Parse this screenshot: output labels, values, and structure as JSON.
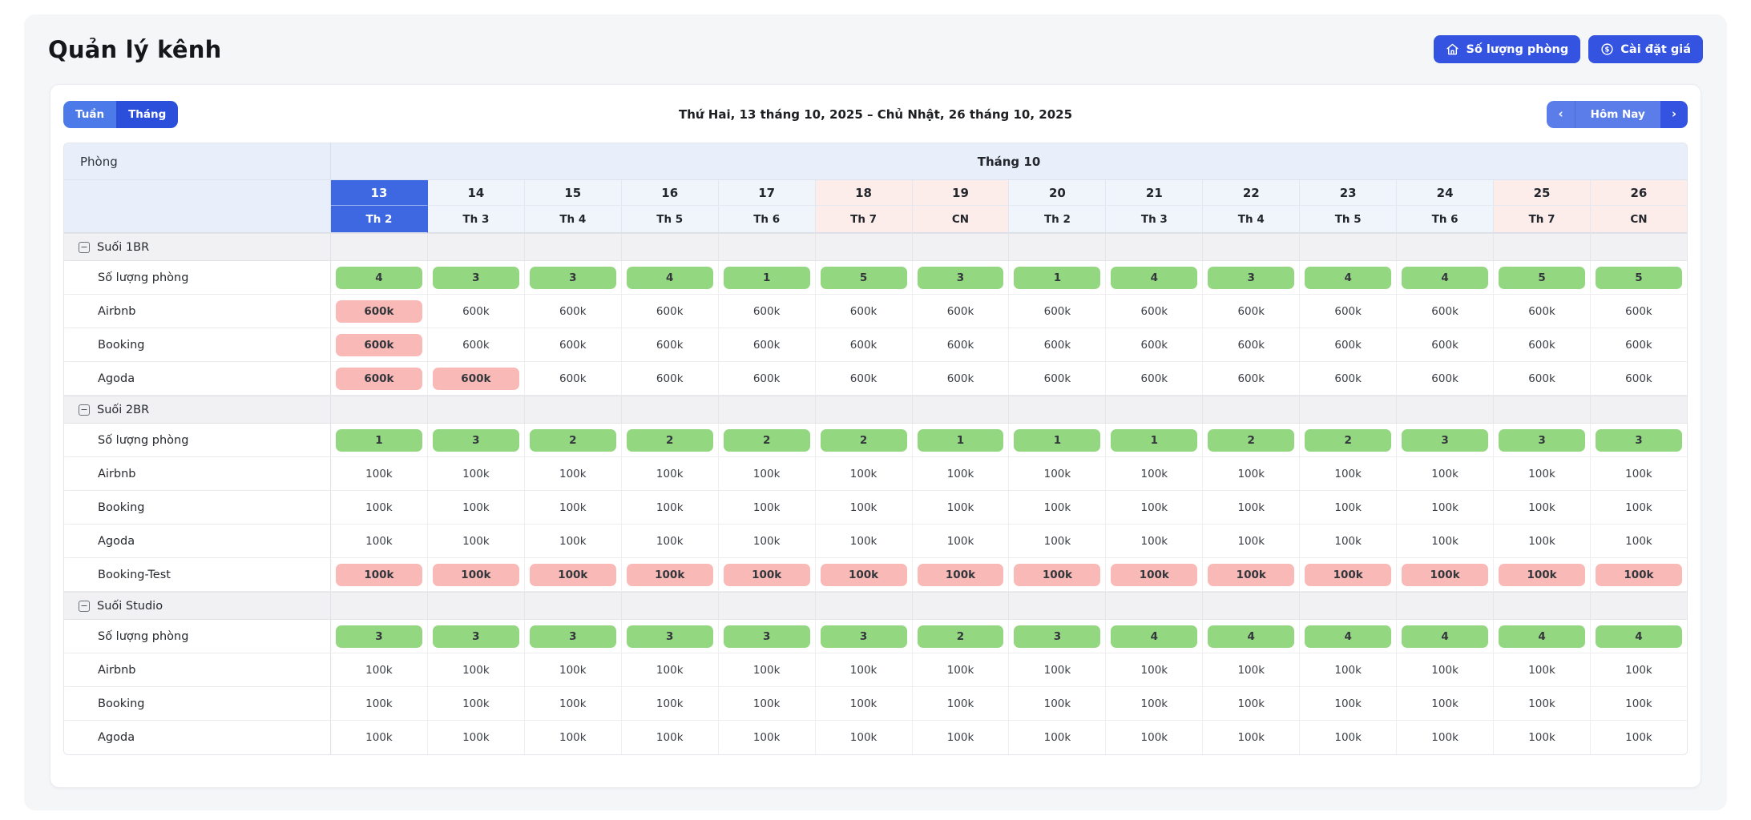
{
  "header": {
    "title": "Quản lý kênh",
    "buttons": [
      {
        "icon": "home-icon",
        "label": "Số lượng phòng"
      },
      {
        "icon": "dollar-circle-icon",
        "label": "Cài đặt giá"
      }
    ]
  },
  "toolbar": {
    "week_label": "Tuần",
    "month_label": "Tháng",
    "date_range": "Thứ Hai, 13 tháng 10, 2025 – Chủ Nhật, 26 tháng 10, 2025",
    "prev_icon": "‹",
    "today_label": "Hôm Nay",
    "next_icon": "›"
  },
  "colors": {
    "accent": "#3353e0",
    "accent_light": "#5b7de9",
    "today_blue": "#3d68e1",
    "header_blue": "#e9effa",
    "weekend_pink": "#fcedeb",
    "pill_green": "#93d780",
    "pill_pink": "#f9b9b6"
  },
  "table": {
    "corner_label": "Phòng",
    "month_label": "Tháng 10",
    "collapse_glyph": "−",
    "today_index": 0,
    "weekend_indices": [
      5,
      6,
      12,
      13
    ],
    "dates": [
      "13",
      "14",
      "15",
      "16",
      "17",
      "18",
      "19",
      "20",
      "21",
      "22",
      "23",
      "24",
      "25",
      "26"
    ],
    "dows": [
      "Th 2",
      "Th 3",
      "Th 4",
      "Th 5",
      "Th 6",
      "Th 7",
      "CN",
      "Th 2",
      "Th 3",
      "Th 4",
      "Th 5",
      "Th 6",
      "Th 7",
      "CN"
    ],
    "groups": [
      {
        "label": "Suối 1BR",
        "rows": [
          {
            "label": "Số lượng phòng",
            "type": "qty",
            "pink": [],
            "values": [
              "4",
              "3",
              "3",
              "4",
              "1",
              "5",
              "3",
              "1",
              "4",
              "3",
              "4",
              "4",
              "5",
              "5"
            ]
          },
          {
            "label": "Airbnb",
            "type": "price",
            "pink": [
              0
            ],
            "values": [
              "600k",
              "600k",
              "600k",
              "600k",
              "600k",
              "600k",
              "600k",
              "600k",
              "600k",
              "600k",
              "600k",
              "600k",
              "600k",
              "600k"
            ]
          },
          {
            "label": "Booking",
            "type": "price",
            "pink": [
              0
            ],
            "values": [
              "600k",
              "600k",
              "600k",
              "600k",
              "600k",
              "600k",
              "600k",
              "600k",
              "600k",
              "600k",
              "600k",
              "600k",
              "600k",
              "600k"
            ]
          },
          {
            "label": "Agoda",
            "type": "price",
            "pink": [
              0,
              1
            ],
            "values": [
              "600k",
              "600k",
              "600k",
              "600k",
              "600k",
              "600k",
              "600k",
              "600k",
              "600k",
              "600k",
              "600k",
              "600k",
              "600k",
              "600k"
            ]
          }
        ]
      },
      {
        "label": "Suối 2BR",
        "rows": [
          {
            "label": "Số lượng phòng",
            "type": "qty",
            "pink": [],
            "values": [
              "1",
              "3",
              "2",
              "2",
              "2",
              "2",
              "1",
              "1",
              "1",
              "2",
              "2",
              "3",
              "3",
              "3"
            ]
          },
          {
            "label": "Airbnb",
            "type": "price",
            "pink": [],
            "values": [
              "100k",
              "100k",
              "100k",
              "100k",
              "100k",
              "100k",
              "100k",
              "100k",
              "100k",
              "100k",
              "100k",
              "100k",
              "100k",
              "100k"
            ]
          },
          {
            "label": "Booking",
            "type": "price",
            "pink": [],
            "values": [
              "100k",
              "100k",
              "100k",
              "100k",
              "100k",
              "100k",
              "100k",
              "100k",
              "100k",
              "100k",
              "100k",
              "100k",
              "100k",
              "100k"
            ]
          },
          {
            "label": "Agoda",
            "type": "price",
            "pink": [],
            "values": [
              "100k",
              "100k",
              "100k",
              "100k",
              "100k",
              "100k",
              "100k",
              "100k",
              "100k",
              "100k",
              "100k",
              "100k",
              "100k",
              "100k"
            ]
          },
          {
            "label": "Booking-Test",
            "type": "price",
            "pink": [
              0,
              1,
              2,
              3,
              4,
              5,
              6,
              7,
              8,
              9,
              10,
              11,
              12,
              13
            ],
            "values": [
              "100k",
              "100k",
              "100k",
              "100k",
              "100k",
              "100k",
              "100k",
              "100k",
              "100k",
              "100k",
              "100k",
              "100k",
              "100k",
              "100k"
            ]
          }
        ]
      },
      {
        "label": "Suối Studio",
        "rows": [
          {
            "label": "Số lượng phòng",
            "type": "qty",
            "pink": [],
            "values": [
              "3",
              "3",
              "3",
              "3",
              "3",
              "3",
              "2",
              "3",
              "4",
              "4",
              "4",
              "4",
              "4",
              "4"
            ]
          },
          {
            "label": "Airbnb",
            "type": "price",
            "pink": [],
            "values": [
              "100k",
              "100k",
              "100k",
              "100k",
              "100k",
              "100k",
              "100k",
              "100k",
              "100k",
              "100k",
              "100k",
              "100k",
              "100k",
              "100k"
            ]
          },
          {
            "label": "Booking",
            "type": "price",
            "pink": [],
            "values": [
              "100k",
              "100k",
              "100k",
              "100k",
              "100k",
              "100k",
              "100k",
              "100k",
              "100k",
              "100k",
              "100k",
              "100k",
              "100k",
              "100k"
            ]
          },
          {
            "label": "Agoda",
            "type": "price",
            "pink": [],
            "values": [
              "100k",
              "100k",
              "100k",
              "100k",
              "100k",
              "100k",
              "100k",
              "100k",
              "100k",
              "100k",
              "100k",
              "100k",
              "100k",
              "100k"
            ]
          }
        ]
      }
    ]
  }
}
